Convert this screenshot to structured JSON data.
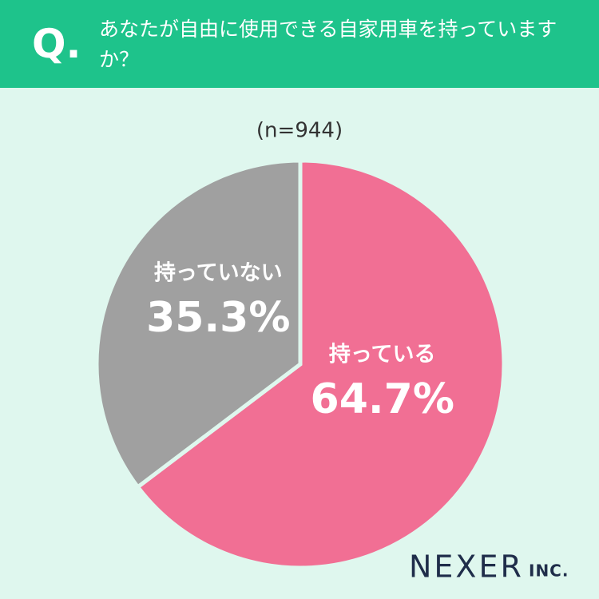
{
  "chart_data": {
    "type": "pie",
    "question_label": "Q.",
    "title": "あなたが自由に使用できる自家用車を持っていますか？",
    "subtitle": "(n=944)",
    "categories": [
      "持っている",
      "持っていない"
    ],
    "values": [
      64.7,
      35.3
    ],
    "value_labels": [
      "64.7%",
      "35.3%"
    ],
    "colors": [
      "#f16f94",
      "#a0a0a0"
    ],
    "logo": {
      "name": "NEXER",
      "suffix": "INC."
    }
  }
}
